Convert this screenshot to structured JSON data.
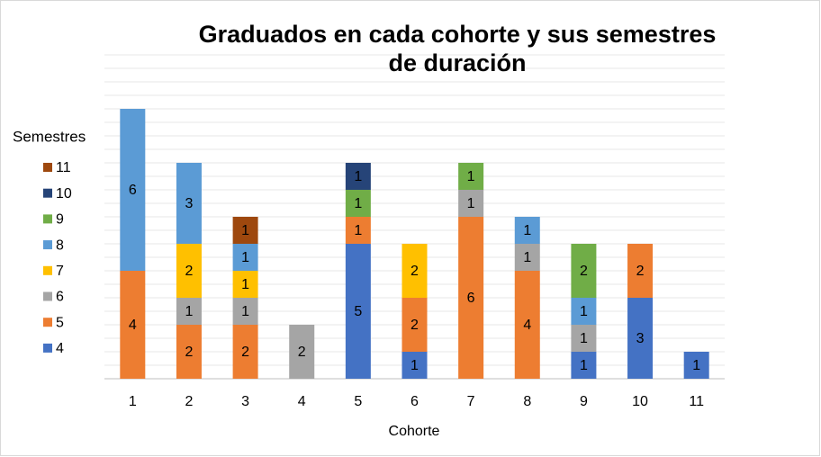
{
  "chart_data": {
    "type": "stacked_bar",
    "title": "Graduados en cada cohorte y sus semestres de duración",
    "x_label": "Cohorte",
    "legend_title": "Semestres",
    "legend": "left",
    "grid": true,
    "categories": [
      "1",
      "2",
      "3",
      "4",
      "5",
      "6",
      "7",
      "8",
      "9",
      "10",
      "11"
    ],
    "ylim": [
      0,
      12
    ],
    "yticks": [
      0,
      0.5,
      1,
      1.5,
      2,
      2.5,
      3,
      3.5,
      4,
      4.5,
      5,
      5.5,
      6,
      6.5,
      7,
      7.5,
      8,
      8.5,
      9,
      9.5,
      10,
      10.5,
      11,
      11.5,
      12
    ],
    "series": [
      {
        "name": "4",
        "color": "#4472c4",
        "values": [
          null,
          null,
          null,
          null,
          5,
          1,
          null,
          null,
          1,
          3,
          1
        ]
      },
      {
        "name": "5",
        "color": "#ed7d31",
        "values": [
          4,
          2,
          2,
          null,
          1,
          2,
          6,
          4,
          null,
          2,
          null
        ]
      },
      {
        "name": "6",
        "color": "#a5a5a5",
        "values": [
          null,
          1,
          1,
          2,
          null,
          null,
          1,
          1,
          1,
          null,
          null
        ]
      },
      {
        "name": "7",
        "color": "#ffc000",
        "values": [
          null,
          2,
          1,
          null,
          null,
          2,
          null,
          null,
          null,
          null,
          null
        ]
      },
      {
        "name": "8",
        "color": "#5b9bd5",
        "values": [
          6,
          3,
          1,
          null,
          null,
          null,
          null,
          1,
          1,
          null,
          null
        ]
      },
      {
        "name": "9",
        "color": "#70ad47",
        "values": [
          null,
          null,
          null,
          null,
          1,
          null,
          1,
          null,
          2,
          null,
          null
        ]
      },
      {
        "name": "10",
        "color": "#264478",
        "values": [
          null,
          null,
          null,
          null,
          1,
          null,
          null,
          null,
          null,
          null,
          null
        ]
      },
      {
        "name": "11",
        "color": "#9e480e",
        "values": [
          null,
          null,
          1,
          null,
          null,
          null,
          null,
          null,
          null,
          null,
          null
        ]
      }
    ]
  }
}
